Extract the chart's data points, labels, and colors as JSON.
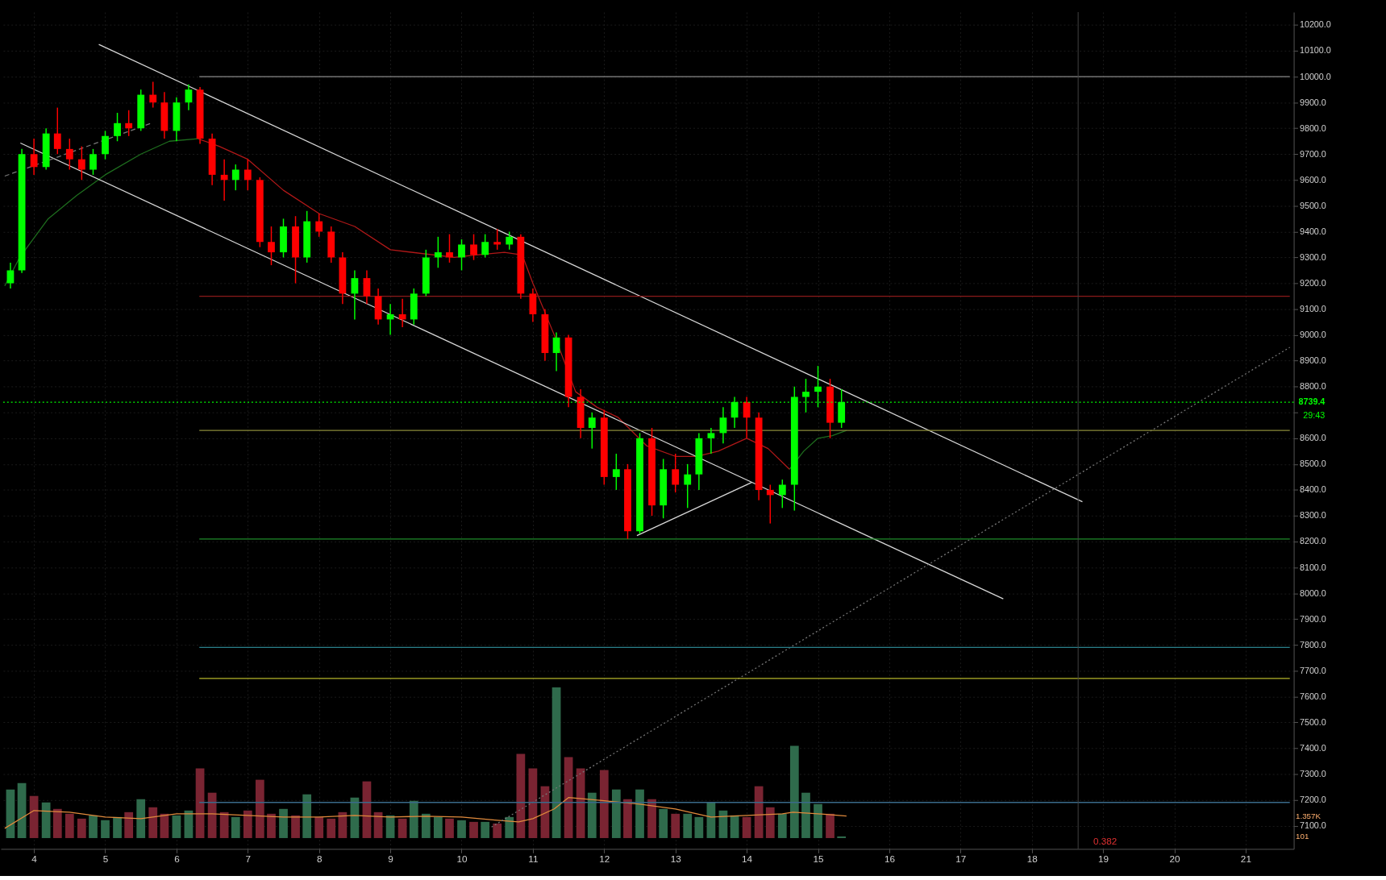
{
  "chart_data": {
    "type": "candlestick",
    "x": [
      3.67,
      3.83,
      4.0,
      4.17,
      4.33,
      4.5,
      4.67,
      4.83,
      5.0,
      5.17,
      5.33,
      5.5,
      5.67,
      5.83,
      6.0,
      6.17,
      6.33,
      6.5,
      6.67,
      6.83,
      7.0,
      7.17,
      7.33,
      7.5,
      7.67,
      7.83,
      8.0,
      8.17,
      8.33,
      8.5,
      8.67,
      8.83,
      9.0,
      9.17,
      9.33,
      9.5,
      9.67,
      9.83,
      10.0,
      10.17,
      10.33,
      10.5,
      10.67,
      10.83,
      11.0,
      11.17,
      11.33,
      11.5,
      11.67,
      11.83,
      12.0,
      12.17,
      12.33,
      12.5,
      12.67,
      12.83,
      13.0,
      13.17,
      13.33,
      13.5,
      13.67,
      13.83,
      14.0,
      14.17,
      14.33,
      14.5,
      14.67,
      14.83,
      15.0,
      15.17,
      15.33
    ],
    "ohlc": [
      [
        9200,
        9280,
        9180,
        9250
      ],
      [
        9250,
        9720,
        9240,
        9700
      ],
      [
        9700,
        9760,
        9620,
        9650
      ],
      [
        9650,
        9800,
        9640,
        9780
      ],
      [
        9780,
        9880,
        9700,
        9720
      ],
      [
        9720,
        9760,
        9640,
        9680
      ],
      [
        9680,
        9730,
        9600,
        9640
      ],
      [
        9640,
        9720,
        9620,
        9700
      ],
      [
        9700,
        9790,
        9680,
        9770
      ],
      [
        9770,
        9860,
        9750,
        9820
      ],
      [
        9820,
        9870,
        9770,
        9800
      ],
      [
        9800,
        9950,
        9790,
        9930
      ],
      [
        9930,
        9980,
        9880,
        9900
      ],
      [
        9900,
        9940,
        9760,
        9790
      ],
      [
        9790,
        9920,
        9750,
        9900
      ],
      [
        9900,
        9970,
        9870,
        9950
      ],
      [
        9950,
        9960,
        9740,
        9760
      ],
      [
        9760,
        9780,
        9580,
        9620
      ],
      [
        9620,
        9680,
        9520,
        9600
      ],
      [
        9600,
        9660,
        9560,
        9640
      ],
      [
        9640,
        9680,
        9560,
        9600
      ],
      [
        9600,
        9610,
        9340,
        9360
      ],
      [
        9360,
        9420,
        9270,
        9320
      ],
      [
        9320,
        9450,
        9300,
        9420
      ],
      [
        9420,
        9460,
        9200,
        9300
      ],
      [
        9300,
        9480,
        9280,
        9440
      ],
      [
        9440,
        9470,
        9380,
        9400
      ],
      [
        9400,
        9420,
        9280,
        9300
      ],
      [
        9300,
        9320,
        9120,
        9160
      ],
      [
        9160,
        9250,
        9060,
        9220
      ],
      [
        9220,
        9250,
        9120,
        9150
      ],
      [
        9150,
        9180,
        9040,
        9060
      ],
      [
        9060,
        9120,
        9000,
        9080
      ],
      [
        9080,
        9140,
        9030,
        9060
      ],
      [
        9060,
        9180,
        9040,
        9160
      ],
      [
        9160,
        9330,
        9150,
        9300
      ],
      [
        9300,
        9380,
        9260,
        9320
      ],
      [
        9320,
        9390,
        9280,
        9300
      ],
      [
        9300,
        9370,
        9250,
        9350
      ],
      [
        9350,
        9390,
        9290,
        9310
      ],
      [
        9310,
        9390,
        9300,
        9360
      ],
      [
        9360,
        9410,
        9330,
        9350
      ],
      [
        9350,
        9400,
        9330,
        9380
      ],
      [
        9380,
        9390,
        9140,
        9160
      ],
      [
        9160,
        9180,
        9050,
        9080
      ],
      [
        9080,
        9100,
        8900,
        8930
      ],
      [
        8930,
        9010,
        8860,
        8990
      ],
      [
        8990,
        9000,
        8720,
        8760
      ],
      [
        8760,
        8790,
        8600,
        8640
      ],
      [
        8640,
        8700,
        8560,
        8680
      ],
      [
        8680,
        8710,
        8420,
        8450
      ],
      [
        8450,
        8540,
        8400,
        8480
      ],
      [
        8480,
        8500,
        8210,
        8240
      ],
      [
        8240,
        8620,
        8230,
        8600
      ],
      [
        8600,
        8640,
        8300,
        8340
      ],
      [
        8340,
        8520,
        8290,
        8480
      ],
      [
        8480,
        8540,
        8390,
        8420
      ],
      [
        8420,
        8500,
        8330,
        8460
      ],
      [
        8460,
        8620,
        8400,
        8600
      ],
      [
        8600,
        8640,
        8540,
        8620
      ],
      [
        8620,
        8720,
        8580,
        8680
      ],
      [
        8680,
        8760,
        8640,
        8740
      ],
      [
        8740,
        8760,
        8600,
        8680
      ],
      [
        8680,
        8700,
        8360,
        8400
      ],
      [
        8400,
        8420,
        8270,
        8380
      ],
      [
        8380,
        8440,
        8330,
        8420
      ],
      [
        8420,
        8800,
        8320,
        8760
      ],
      [
        8760,
        8830,
        8700,
        8780
      ],
      [
        8780,
        8880,
        8720,
        8800
      ],
      [
        8800,
        8830,
        8600,
        8660
      ],
      [
        8660,
        8790,
        8640,
        8740
      ]
    ],
    "colors": [
      "#00ff00",
      "#00ff00",
      "#ff0000",
      "#00ff00",
      "#ff0000",
      "#ff0000",
      "#ff0000",
      "#00ff00",
      "#00ff00",
      "#00ff00",
      "#ff0000",
      "#00ff00",
      "#ff0000",
      "#ff0000",
      "#00ff00",
      "#00ff00",
      "#ff0000",
      "#ff0000",
      "#ff0000",
      "#00ff00",
      "#ff0000",
      "#ff0000",
      "#ff0000",
      "#00ff00",
      "#ff0000",
      "#00ff00",
      "#ff0000",
      "#ff0000",
      "#ff0000",
      "#00ff00",
      "#ff0000",
      "#ff0000",
      "#00ff00",
      "#ff0000",
      "#00ff00",
      "#00ff00",
      "#00ff00",
      "#ff0000",
      "#00ff00",
      "#ff0000",
      "#00ff00",
      "#ff0000",
      "#00ff00",
      "#ff0000",
      "#ff0000",
      "#ff0000",
      "#00ff00",
      "#ff0000",
      "#ff0000",
      "#00ff00",
      "#ff0000",
      "#00ff00",
      "#ff0000",
      "#00ff00",
      "#ff0000",
      "#00ff00",
      "#ff0000",
      "#00ff00",
      "#00ff00",
      "#00ff00",
      "#00ff00",
      "#00ff00",
      "#ff0000",
      "#ff0000",
      "#ff0000",
      "#00ff00",
      "#00ff00",
      "#00ff00",
      "#00ff00",
      "#ff0000",
      "#00ff00"
    ],
    "series": [
      {
        "type": "bar",
        "axis": "y2",
        "values": [
          3000,
          3400,
          2600,
          2200,
          1800,
          1500,
          1200,
          1400,
          1100,
          1300,
          1600,
          2400,
          1900,
          1500,
          1400,
          1700,
          4300,
          2800,
          1600,
          1300,
          1700,
          3600,
          1500,
          1800,
          1400,
          2700,
          1300,
          1200,
          1600,
          2500,
          3500,
          1600,
          1400,
          1200,
          2300,
          1500,
          1300,
          1200,
          1100,
          1000,
          1000,
          900,
          1300,
          5200,
          4300,
          3200,
          9300,
          5000,
          4300,
          2800,
          4200,
          3000,
          2400,
          3000,
          2400,
          1800,
          1500,
          1500,
          1300,
          2200,
          1700,
          1400,
          1300,
          3200,
          1900,
          1500,
          5700,
          2800,
          2100,
          1500,
          101
        ],
        "colors": [
          "#2f6b4c",
          "#2f6b4c",
          "#7a2432",
          "#2f6b4c",
          "#7a2432",
          "#7a2432",
          "#7a2432",
          "#2f6b4c",
          "#2f6b4c",
          "#2f6b4c",
          "#7a2432",
          "#2f6b4c",
          "#7a2432",
          "#7a2432",
          "#2f6b4c",
          "#2f6b4c",
          "#7a2432",
          "#7a2432",
          "#7a2432",
          "#2f6b4c",
          "#7a2432",
          "#7a2432",
          "#7a2432",
          "#2f6b4c",
          "#7a2432",
          "#2f6b4c",
          "#7a2432",
          "#7a2432",
          "#7a2432",
          "#2f6b4c",
          "#7a2432",
          "#7a2432",
          "#2f6b4c",
          "#7a2432",
          "#2f6b4c",
          "#2f6b4c",
          "#2f6b4c",
          "#7a2432",
          "#2f6b4c",
          "#7a2432",
          "#2f6b4c",
          "#7a2432",
          "#2f6b4c",
          "#7a2432",
          "#7a2432",
          "#7a2432",
          "#2f6b4c",
          "#7a2432",
          "#7a2432",
          "#2f6b4c",
          "#7a2432",
          "#2f6b4c",
          "#7a2432",
          "#2f6b4c",
          "#7a2432",
          "#2f6b4c",
          "#7a2432",
          "#2f6b4c",
          "#2f6b4c",
          "#2f6b4c",
          "#2f6b4c",
          "#2f6b4c",
          "#7a2432",
          "#7a2432",
          "#7a2432",
          "#2f6b4c",
          "#2f6b4c",
          "#2f6b4c",
          "#2f6b4c",
          "#7a2432",
          "#2f6b4c"
        ]
      },
      {
        "type": "line",
        "axis": "y2",
        "color": "#e08a3c",
        "x": [
          3.59,
          4.0,
          4.5,
          5.0,
          5.5,
          6.0,
          6.5,
          7.0,
          7.5,
          8.0,
          8.5,
          9.0,
          9.5,
          10.0,
          10.5,
          10.8,
          11.0,
          11.3,
          11.5,
          12.0,
          12.5,
          13.0,
          13.5,
          14.0,
          14.5,
          14.65,
          15.0,
          15.4
        ],
        "values": [
          600,
          1700,
          1600,
          1300,
          1200,
          1500,
          1500,
          1400,
          1300,
          1300,
          1400,
          1300,
          1350,
          1300,
          1100,
          1000,
          1200,
          1800,
          2500,
          2300,
          2100,
          1800,
          1300,
          1400,
          1500,
          1600,
          1500,
          1357
        ]
      },
      {
        "type": "line",
        "color": "#1e6e1e",
        "x": [
          3.59,
          3.8,
          4.2,
          4.6,
          5.0,
          5.5,
          5.9,
          6.3
        ],
        "values": [
          9190,
          9300,
          9450,
          9540,
          9620,
          9700,
          9750,
          9760
        ]
      },
      {
        "type": "line",
        "color": "#b01818",
        "x": [
          6.3,
          6.6,
          7.0,
          7.5,
          8.0,
          8.5,
          9.0,
          9.9,
          10.2,
          10.6,
          10.85,
          11.0,
          11.3,
          11.6,
          11.9,
          12.2,
          12.6,
          13.0,
          13.3,
          13.6,
          14.0,
          14.3,
          14.6
        ],
        "values": [
          9760,
          9730,
          9680,
          9560,
          9470,
          9420,
          9330,
          9300,
          9310,
          9320,
          9310,
          9200,
          9000,
          8780,
          8720,
          8680,
          8570,
          8530,
          8530,
          8550,
          8600,
          8560,
          8480
        ]
      },
      {
        "type": "line",
        "color": "#1e6e1e",
        "x": [
          14.6,
          14.8,
          15.0,
          15.2,
          15.4
        ],
        "values": [
          8480,
          8550,
          8600,
          8610,
          8630
        ]
      },
      {
        "type": "line",
        "color": "#d8d8d8",
        "x": [
          4.91,
          18.71
        ],
        "values": [
          10125,
          8354
        ]
      },
      {
        "type": "line",
        "color": "#d8d8d8",
        "x": [
          3.81,
          17.6
        ],
        "values": [
          9743,
          7978
        ]
      },
      {
        "type": "line",
        "color": "#d8d8d8",
        "x": [
          12.46,
          14.07
        ],
        "values": [
          8223,
          8429
        ]
      },
      {
        "type": "line",
        "color": "#777777",
        "line_style": "dashed",
        "x": [
          3.59,
          5.65
        ],
        "values": [
          9615,
          9820
        ]
      },
      {
        "type": "line",
        "color": "#777777",
        "line_style": "dotted",
        "x": [
          10.42,
          21.62
        ],
        "values": [
          7095,
          8952
        ]
      },
      {
        "type": "line",
        "color": "#8a8a8a",
        "x": [
          6.32,
          21.62
        ],
        "values": [
          10000,
          10000
        ]
      },
      {
        "type": "line",
        "color": "#8b1a1a",
        "x": [
          6.32,
          21.62
        ],
        "values": [
          9150,
          9150
        ]
      },
      {
        "type": "line",
        "color": "#8a8a3a",
        "x": [
          6.32,
          21.62
        ],
        "values": [
          8630,
          8630
        ]
      },
      {
        "type": "line",
        "color": "#1f8b2a",
        "x": [
          6.32,
          21.62
        ],
        "values": [
          8210,
          8210
        ]
      },
      {
        "type": "line",
        "color": "#2a7f8a",
        "x": [
          6.32,
          21.62
        ],
        "values": [
          7790,
          7790
        ]
      },
      {
        "type": "line",
        "color": "#b5b52a",
        "x": [
          6.32,
          21.62
        ],
        "values": [
          7670,
          7670
        ]
      },
      {
        "type": "line",
        "color": "#3a6a8a",
        "x": [
          6.32,
          21.62
        ],
        "values": [
          7190,
          7190
        ]
      }
    ],
    "ref_lines": [
      {
        "axis": "y",
        "value": 8739.4,
        "label": "8739.4",
        "color": "#00ff00",
        "line_style": "dotted"
      },
      {
        "axis": "x",
        "value": 18.65,
        "color": "#444444"
      }
    ],
    "annotations": [
      "29:43",
      "0.382"
    ],
    "xlim": [
      3.59,
      21.62
    ],
    "xticks": [
      4,
      5,
      6,
      7,
      8,
      9,
      10,
      11,
      12,
      13,
      14,
      15,
      16,
      17,
      18,
      19,
      20,
      21
    ],
    "ylim": [
      7010,
      10250
    ],
    "yticks": [
      {
        "value": 7100,
        "label": "7100.0"
      },
      {
        "value": 7200,
        "label": "7200.0"
      },
      {
        "value": 7300,
        "label": "7300.0"
      },
      {
        "value": 7400,
        "label": "7400.0"
      },
      {
        "value": 7500,
        "label": "7500.0"
      },
      {
        "value": 7600,
        "label": "7600.0"
      },
      {
        "value": 7700,
        "label": "7700.0"
      },
      {
        "value": 7800,
        "label": "7800.0"
      },
      {
        "value": 7900,
        "label": "7900.0"
      },
      {
        "value": 8000,
        "label": "8000.0"
      },
      {
        "value": 8100,
        "label": "8100.0"
      },
      {
        "value": 8200,
        "label": "8200.0"
      },
      {
        "value": 8300,
        "label": "8300.0"
      },
      {
        "value": 8400,
        "label": "8400.0"
      },
      {
        "value": 8500,
        "label": "8500.0"
      },
      {
        "value": 8600,
        "label": "8600.0"
      },
      {
        "value": 8700,
        "label": null
      },
      {
        "value": 8800,
        "label": "8800.0"
      },
      {
        "value": 8900,
        "label": "8900.0"
      },
      {
        "value": 9000,
        "label": "9000.0"
      },
      {
        "value": 9100,
        "label": "9100.0"
      },
      {
        "value": 9200,
        "label": "9200.0"
      },
      {
        "value": 9300,
        "label": "9300.0"
      },
      {
        "value": 9400,
        "label": "9400.0"
      },
      {
        "value": 9500,
        "label": "9500.0"
      },
      {
        "value": 9600,
        "label": "9600.0"
      },
      {
        "value": 9700,
        "label": "9700.0"
      },
      {
        "value": 9800,
        "label": "9800.0"
      },
      {
        "value": 9900,
        "label": "9900.0"
      },
      {
        "value": 10000,
        "label": "10000.0"
      },
      {
        "value": 10100,
        "label": "10100.0"
      },
      {
        "value": 10200,
        "label": "10200.0"
      }
    ],
    "y2lim": [
      -670,
      51000
    ],
    "y2ticks": [
      {
        "value": 1357,
        "label": "1.357K"
      },
      {
        "value": 101,
        "label": "101"
      }
    ],
    "grid": true
  }
}
